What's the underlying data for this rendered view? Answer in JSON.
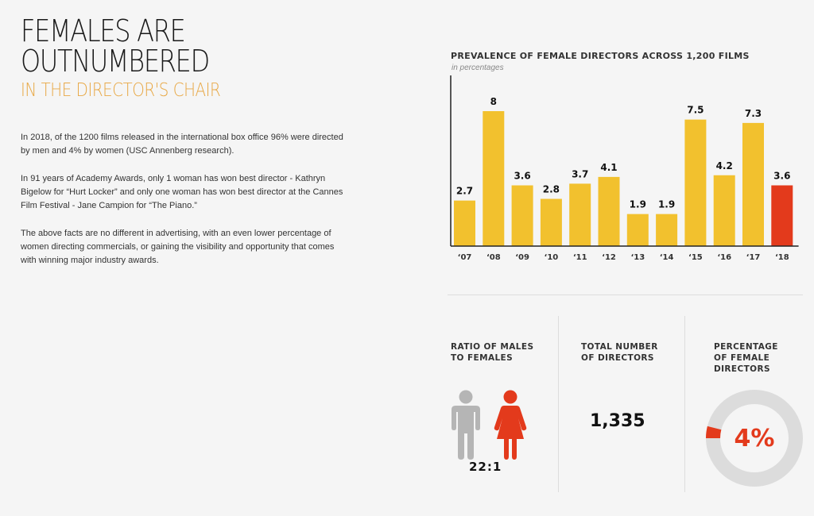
{
  "header": {
    "title_line1": "FEMALES ARE",
    "title_line2": "OUTNUMBERED",
    "subtitle": "IN THE DIRECTOR'S CHAIR"
  },
  "body": {
    "p1": "In 2018, of the 1200 films released in the international box office 96% were directed by men and 4% by women (USC Annenberg research).",
    "p2": "In 91 years of Academy Awards, only 1 woman has won best director - Kathryn Bigelow for “Hurt Locker” and only one woman has won best director at the Cannes Film Festival - Jane Campion for “The Piano.”",
    "p3": "The above facts are no different in advertising, with an even lower percentage of women directing commercials, or gaining the visibility and opportunity that comes with winning major industry awards."
  },
  "chart_data": {
    "type": "bar",
    "title": "PREVALENCE OF FEMALE DIRECTORS ACROSS 1,200 FILMS",
    "subtitle": "in percentages",
    "categories": [
      "‘07",
      "‘08",
      "‘09",
      "‘10",
      "‘11",
      "‘12",
      "‘13",
      "‘14",
      "‘15",
      "‘16",
      "‘17",
      "‘18"
    ],
    "values": [
      2.7,
      8,
      3.6,
      2.8,
      3.7,
      4.1,
      1.9,
      1.9,
      7.5,
      4.2,
      7.3,
      3.6
    ],
    "data_labels": [
      "2.7",
      "8",
      "3.6",
      "2.8",
      "3.7",
      "4.1",
      "1.9",
      "1.9",
      "7.5",
      "4.2",
      "7.3",
      "3.6"
    ],
    "ylim": [
      0,
      8
    ],
    "grid": false,
    "colors": {
      "bar": "#f2c12e",
      "highlight": "#e33a1c"
    },
    "highlight_index": 11
  },
  "stats": {
    "ratio": {
      "label": "RATIO OF MALES\nTO FEMALES",
      "value": "22:1"
    },
    "total": {
      "label": "TOTAL NUMBER\nOF DIRECTORS",
      "value": "1,335"
    },
    "percentage": {
      "label": "PERCENTAGE\nOF FEMALE\nDIRECTORS",
      "value": "4%",
      "fraction": 0.04
    }
  },
  "colors": {
    "accent_orange": "#e8a845",
    "female_red": "#e33a1c",
    "male_grey": "#b5b5b5",
    "donut_track": "#dcdcdc"
  },
  "icons": [
    "male-figure-icon",
    "female-figure-icon"
  ]
}
